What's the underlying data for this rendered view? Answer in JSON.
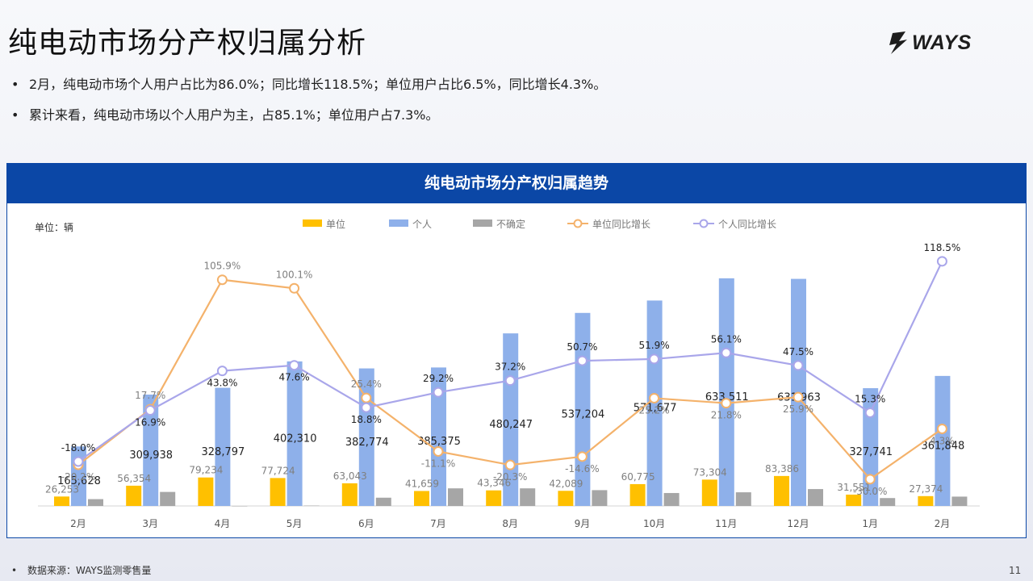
{
  "page": {
    "title": "纯电动市场分产权归属分析",
    "brand": "WAYS",
    "bullets": [
      "2月，纯电动市场个人用户占比为86.0%；同比增长118.5%；单位用户占比6.5%，同比增长4.3%。",
      "累计来看，纯电动市场以个人用户为主，占85.1%；单位用户占7.3%。"
    ],
    "source": "数据来源：WAYS监测零售量",
    "page_number": "11"
  },
  "colors": {
    "header": "#0b47a6",
    "unit": "#ffc000",
    "personal": "#8eb0ea",
    "uncertain": "#a6a6a6",
    "unit_yoy": "#f4b26b",
    "personal_yoy": "#a9a6ea"
  },
  "chart_data": {
    "type": "bar",
    "title": "纯电动市场分产权归属趋势",
    "unit_label": "单位：辆",
    "categories": [
      "2月",
      "3月",
      "4月",
      "5月",
      "6月",
      "7月",
      "8月",
      "9月",
      "10月",
      "11月",
      "12月",
      "1月",
      "2月"
    ],
    "series": [
      {
        "name": "单位",
        "type": "bar",
        "values": [
          26253,
          56354,
          79234,
          77724,
          63043,
          41659,
          43346,
          42089,
          60775,
          73304,
          83386,
          31551,
          27374
        ]
      },
      {
        "name": "个人",
        "type": "bar",
        "values": [
          165628,
          309938,
          328797,
          402310,
          382774,
          385375,
          480247,
          537204,
          571677,
          633511,
          631963,
          327741,
          361848
        ]
      },
      {
        "name": "不确定",
        "type": "bar",
        "values": [
          19000,
          39000,
          0,
          1000,
          23000,
          49000,
          49000,
          44000,
          36000,
          38000,
          47000,
          22000,
          26000
        ]
      },
      {
        "name": "单位同比增长",
        "type": "line",
        "values": [
          -20.2,
          17.7,
          105.9,
          100.1,
          25.4,
          -11.1,
          -20.3,
          -14.6,
          25.2,
          21.8,
          25.9,
          -30.0,
          4.3
        ]
      },
      {
        "name": "个人同比增长",
        "type": "line",
        "values": [
          -18.0,
          16.9,
          43.8,
          47.6,
          18.8,
          29.2,
          37.2,
          50.7,
          51.9,
          56.1,
          47.5,
          15.3,
          118.5
        ]
      }
    ],
    "bar_value_range": [
      0,
      640000
    ],
    "line_value_range": [
      -40,
      125
    ],
    "legend_position": "top-center",
    "grid": false
  }
}
